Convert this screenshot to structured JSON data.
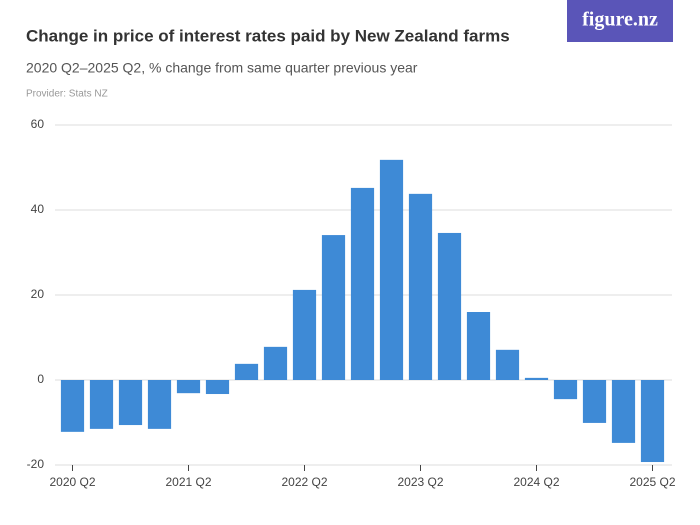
{
  "chart_data": {
    "type": "bar",
    "title": "Change in price of interest rates paid by New Zealand farms",
    "subtitle": "2020 Q2–2025 Q2, % change from same quarter previous year",
    "provider": "Provider: Stats NZ",
    "logo": "figure.nz",
    "categories": [
      "2020 Q2",
      null,
      null,
      null,
      "2021 Q2",
      null,
      null,
      null,
      "2022 Q2",
      null,
      null,
      null,
      "2023 Q2",
      null,
      null,
      null,
      "2024 Q2",
      null,
      null,
      null,
      "2025 Q2"
    ],
    "values": [
      -12.2,
      -11.5,
      -10.6,
      -11.5,
      -3.1,
      -3.3,
      3.8,
      7.8,
      21.2,
      34.1,
      45.2,
      51.8,
      43.8,
      34.6,
      16.0,
      7.1,
      0.5,
      -4.5,
      -10.1,
      -14.8,
      -19.3
    ],
    "color": "#3e8ad6",
    "ylim": [
      -20,
      60
    ],
    "yticks": [
      -20,
      0,
      20,
      40,
      60
    ],
    "grid": true
  }
}
